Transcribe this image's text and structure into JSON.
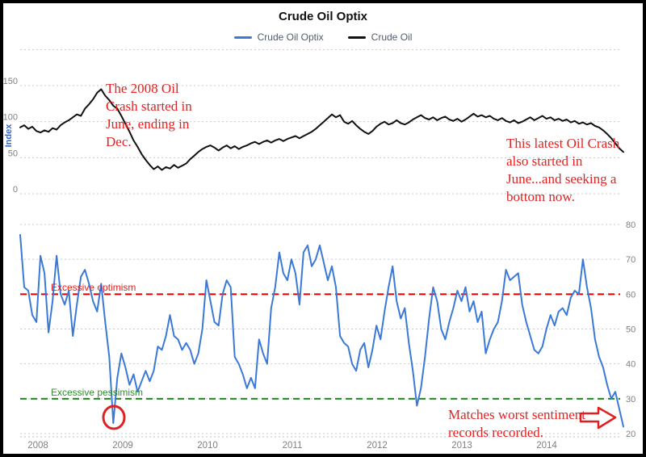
{
  "title": "Crude Oil Optix",
  "legend": [
    {
      "label": "Crude Oil Optix",
      "color": "#3b79d8"
    },
    {
      "label": "Crude Oil",
      "color": "#111111"
    }
  ],
  "axes": {
    "price_axis_label": "Index",
    "price_ticks": [
      "0",
      "50",
      "100",
      "150"
    ],
    "sentiment_ticks": [
      "20",
      "30",
      "40",
      "50",
      "60",
      "70",
      "80"
    ],
    "x_ticks": [
      "2008",
      "2009",
      "2010",
      "2011",
      "2012",
      "2013",
      "2014"
    ],
    "tick_color": "#808080",
    "grid_color": "#c9c9c9"
  },
  "annotations": {
    "crash_2008": "The 2008 Oil\nCrash started in\nJune, ending in\nDec.",
    "crash_2014": "This latest Oil Crash\nalso started in\nJune...and seeking a\nbottom now.",
    "worst_sentiment": "Matches worst sentiment\nrecords recorded.",
    "annotation_color": "#e32222"
  },
  "chart_data": {
    "type": "line",
    "title": "Crude Oil Optix",
    "x_start": 2007.79,
    "x_step": 0.048,
    "x_tick_labels": [
      "2008",
      "2009",
      "2010",
      "2011",
      "2012",
      "2013",
      "2014"
    ],
    "legend_position": "top-center",
    "grid": true,
    "panels": [
      {
        "name": "price-panel",
        "ylabel": "Index",
        "ylim": [
          0,
          200
        ],
        "yticks": [
          0,
          50,
          100,
          150
        ],
        "series": [
          {
            "name": "Crude Oil",
            "color": "#111111",
            "values": [
              92,
              95,
              90,
              93,
              87,
              85,
              88,
              86,
              91,
              89,
              95,
              99,
              102,
              106,
              110,
              108,
              118,
              124,
              131,
              140,
              145,
              136,
              130,
              122,
              118,
              108,
              97,
              86,
              74,
              65,
              55,
              47,
              40,
              34,
              38,
              33,
              37,
              35,
              40,
              36,
              39,
              42,
              48,
              53,
              58,
              62,
              65,
              67,
              64,
              60,
              64,
              67,
              63,
              66,
              62,
              65,
              67,
              70,
              72,
              69,
              72,
              74,
              71,
              74,
              76,
              73,
              76,
              78,
              80,
              77,
              80,
              83,
              86,
              90,
              95,
              100,
              105,
              110,
              106,
              109,
              100,
              97,
              101,
              95,
              90,
              86,
              83,
              87,
              93,
              97,
              100,
              96,
              98,
              102,
              98,
              96,
              99,
              103,
              106,
              109,
              105,
              103,
              106,
              102,
              105,
              107,
              103,
              101,
              104,
              100,
              103,
              107,
              111,
              107,
              109,
              106,
              108,
              104,
              102,
              105,
              101,
              99,
              102,
              98,
              100,
              103,
              106,
              102,
              105,
              108,
              104,
              106,
              102,
              104,
              101,
              103,
              99,
              101,
              97,
              99,
              96,
              98,
              94,
              92,
              88,
              83,
              77,
              70,
              63,
              58
            ]
          }
        ]
      },
      {
        "name": "sentiment-panel",
        "ylabel": "",
        "ylim": [
          20,
          80
        ],
        "yticks": [
          20,
          30,
          40,
          50,
          60,
          70,
          80
        ],
        "thresholds": [
          {
            "label": "Excessive optimism",
            "value": 60,
            "color": "#e00000"
          },
          {
            "label": "Excessive pessimism",
            "value": 30,
            "color": "#1e8a1e"
          }
        ],
        "series": [
          {
            "name": "Crude Oil Optix",
            "color": "#3b79d8",
            "values": [
              77,
              62,
              61,
              54,
              52,
              71,
              66,
              49,
              58,
              71,
              60,
              57,
              61,
              48,
              57,
              65,
              67,
              63,
              58,
              55,
              63,
              52,
              42,
              23,
              36,
              43,
              39,
              34,
              37,
              32,
              35,
              38,
              35,
              38,
              45,
              44,
              48,
              54,
              48,
              47,
              44,
              46,
              44,
              40,
              43,
              50,
              64,
              58,
              52,
              51,
              60,
              64,
              62,
              42,
              40,
              37,
              33,
              36,
              33,
              47,
              43,
              40,
              56,
              62,
              72,
              66,
              64,
              70,
              66,
              57,
              72,
              74,
              68,
              70,
              74,
              69,
              64,
              68,
              62,
              48,
              46,
              45,
              40,
              38,
              44,
              46,
              39,
              44,
              51,
              47,
              55,
              62,
              68,
              58,
              53,
              56,
              46,
              38,
              28,
              33,
              42,
              53,
              62,
              58,
              50,
              47,
              52,
              56,
              61,
              58,
              62,
              55,
              58,
              52,
              55,
              43,
              47,
              50,
              52,
              58,
              67,
              64,
              65,
              66,
              57,
              52,
              48,
              44,
              43,
              45,
              50,
              54,
              51,
              55,
              56,
              54,
              59,
              61,
              60,
              70,
              62,
              56,
              47,
              42,
              39,
              34,
              30,
              32,
              27,
              22
            ]
          }
        ]
      }
    ]
  }
}
